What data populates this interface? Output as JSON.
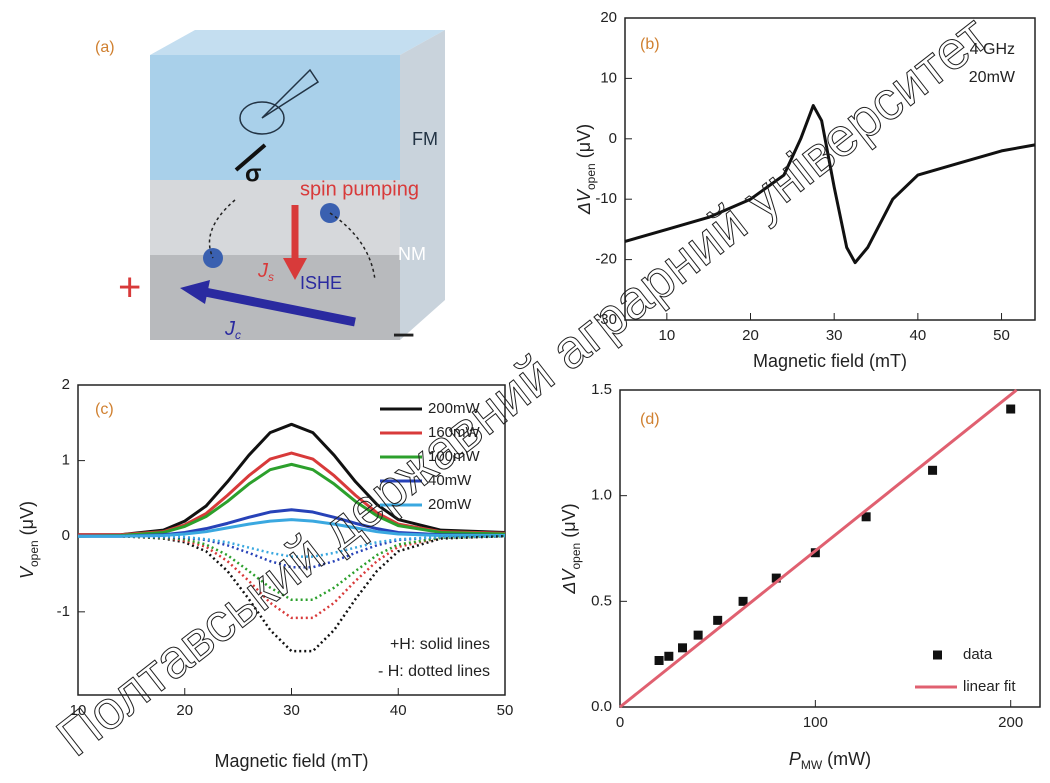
{
  "diagram": {
    "label": "(a)",
    "fm": "FM",
    "nm": "NM",
    "sigma": "σ",
    "spin_pumping": "spin pumping",
    "js": {
      "base": "J",
      "sub": "s"
    },
    "ishe": "ISHE",
    "jc": {
      "base": "J",
      "sub": "c"
    },
    "plus": "+",
    "minus": "−"
  },
  "watermark": "Полтавський державний аграрний університет",
  "chart_data": [
    {
      "type": "line",
      "panel": "(b)",
      "xlabel": "Magnetic field (mT)",
      "ylabel": {
        "base": "ΔV",
        "sub": "open",
        "unit": " (μV)"
      },
      "annotations": [
        "4 GHz",
        "20mW"
      ],
      "x": [
        5,
        10,
        15,
        20,
        24,
        26,
        27.5,
        28.5,
        30,
        31.5,
        32.5,
        34,
        37,
        40,
        45,
        50,
        54
      ],
      "series": [
        {
          "color": "#111111",
          "values": [
            -17,
            -15,
            -13,
            -10,
            -6,
            0,
            5.5,
            3,
            -8,
            -18,
            -20.5,
            -18,
            -10,
            -6,
            -4,
            -2,
            -1
          ]
        }
      ],
      "xlim": [
        5,
        54
      ],
      "xticks": [
        10,
        20,
        30,
        40,
        50
      ],
      "ylim": [
        -30,
        20
      ],
      "yticks": [
        -30,
        -20,
        -10,
        0,
        10,
        20
      ]
    },
    {
      "type": "line",
      "panel": "(c)",
      "xlabel": "Magnetic field (mT)",
      "ylabel": {
        "base": "V",
        "sub": "open",
        "unit": " (μV)"
      },
      "annotations": [
        "+H: solid lines",
        "- H: dotted lines"
      ],
      "legend": "upper right",
      "x": [
        10,
        14,
        18,
        20,
        22,
        24,
        26,
        28,
        30,
        32,
        34,
        36,
        38,
        40,
        44,
        50
      ],
      "series": [
        {
          "name": "200mW",
          "color": "#111111",
          "values": [
            0.02,
            0.02,
            0.08,
            0.2,
            0.4,
            0.72,
            1.07,
            1.37,
            1.48,
            1.37,
            1.07,
            0.72,
            0.42,
            0.22,
            0.08,
            0.05
          ]
        },
        {
          "name": "160mW",
          "color": "#d83a3a",
          "values": [
            0.02,
            0.02,
            0.06,
            0.15,
            0.3,
            0.54,
            0.8,
            1.02,
            1.1,
            1.02,
            0.8,
            0.54,
            0.31,
            0.16,
            0.06,
            0.04
          ]
        },
        {
          "name": "100mW",
          "color": "#2ca02c",
          "values": [
            0,
            0.01,
            0.05,
            0.13,
            0.26,
            0.46,
            0.69,
            0.88,
            0.95,
            0.88,
            0.69,
            0.46,
            0.27,
            0.14,
            0.05,
            0.03
          ]
        },
        {
          "name": "40mW",
          "color": "#2742b8",
          "values": [
            0,
            0,
            0.02,
            0.05,
            0.1,
            0.17,
            0.25,
            0.32,
            0.35,
            0.32,
            0.25,
            0.17,
            0.1,
            0.05,
            0.02,
            0.01
          ]
        },
        {
          "name": "20mW",
          "color": "#3aa8e0",
          "values": [
            0,
            0,
            0.01,
            0.03,
            0.06,
            0.11,
            0.16,
            0.2,
            0.22,
            0.2,
            0.16,
            0.11,
            0.06,
            0.03,
            0.01,
            0.01
          ]
        },
        {
          "color": "#111111",
          "dash": true,
          "values": [
            0,
            0,
            -0.03,
            -0.08,
            -0.2,
            -0.46,
            -0.83,
            -1.24,
            -1.52,
            -1.52,
            -1.24,
            -0.83,
            -0.46,
            -0.2,
            -0.03,
            0
          ]
        },
        {
          "color": "#d83a3a",
          "dash": true,
          "values": [
            0,
            0,
            -0.02,
            -0.06,
            -0.14,
            -0.33,
            -0.59,
            -0.88,
            -1.08,
            -1.08,
            -0.88,
            -0.59,
            -0.33,
            -0.14,
            -0.02,
            0
          ]
        },
        {
          "color": "#2ca02c",
          "dash": true,
          "values": [
            0,
            0,
            -0.02,
            -0.04,
            -0.11,
            -0.25,
            -0.46,
            -0.68,
            -0.84,
            -0.84,
            -0.68,
            -0.46,
            -0.25,
            -0.11,
            -0.02,
            0
          ]
        },
        {
          "color": "#2742b8",
          "dash": true,
          "values": [
            0,
            0,
            -0.01,
            -0.02,
            -0.05,
            -0.12,
            -0.22,
            -0.33,
            -0.41,
            -0.41,
            -0.33,
            -0.22,
            -0.12,
            -0.05,
            -0.01,
            0
          ]
        },
        {
          "color": "#3aa8e0",
          "dash": true,
          "values": [
            0,
            0,
            0,
            -0.01,
            -0.04,
            -0.08,
            -0.15,
            -0.22,
            -0.27,
            -0.27,
            -0.22,
            -0.15,
            -0.08,
            -0.04,
            -0.01,
            0
          ]
        }
      ],
      "xlim": [
        10,
        50
      ],
      "xticks": [
        10,
        20,
        30,
        40,
        50
      ],
      "ylim": [
        -2.1,
        2
      ],
      "yticks": [
        -1,
        0,
        1,
        2
      ]
    },
    {
      "type": "scatter",
      "panel": "(d)",
      "xlabel": {
        "base": "P",
        "sub": "MW",
        "unit": " (mW)"
      },
      "ylabel": {
        "base": "ΔV",
        "sub": "open",
        "unit": " (μV)"
      },
      "legend": "lower right",
      "series": [
        {
          "name": "data",
          "color": "#111111",
          "marker": "square",
          "x": [
            20,
            25,
            32,
            40,
            50,
            63,
            80,
            100,
            126,
            160,
            200
          ],
          "values": [
            0.22,
            0.24,
            0.28,
            0.34,
            0.41,
            0.5,
            0.61,
            0.73,
            0.9,
            1.12,
            1.41
          ]
        },
        {
          "name": "linear fit",
          "color": "#e06070",
          "marker": "line",
          "x": [
            0,
            203
          ],
          "values": [
            0,
            1.5
          ]
        }
      ],
      "xlim": [
        0,
        215
      ],
      "xticks": [
        0,
        100,
        200
      ],
      "ylim": [
        0,
        1.5
      ],
      "yticks": [
        {
          "value": 0,
          "label": "0.0"
        },
        0.5,
        {
          "value": 1,
          "label": "1.0"
        },
        1.5
      ]
    }
  ]
}
